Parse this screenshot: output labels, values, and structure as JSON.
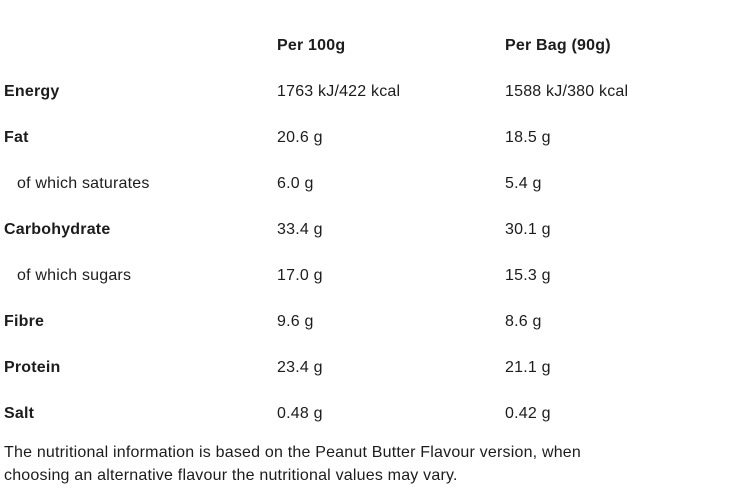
{
  "table": {
    "header": {
      "per100": "Per 100g",
      "perbag": "Per Bag (90g)"
    },
    "rows": [
      {
        "label": "Energy",
        "bold": true,
        "per100": "1763 kJ/422 kcal",
        "perbag": "1588 kJ/380 kcal"
      },
      {
        "label": "Fat",
        "bold": true,
        "per100": "20.6 g",
        "perbag": "18.5 g"
      },
      {
        "label": "of which saturates",
        "bold": false,
        "per100": "6.0 g",
        "perbag": "5.4 g"
      },
      {
        "label": "Carbohydrate",
        "bold": true,
        "per100": "33.4 g",
        "perbag": "30.1 g"
      },
      {
        "label": "of which sugars",
        "bold": false,
        "per100": "17.0 g",
        "perbag": "15.3 g"
      },
      {
        "label": "Fibre",
        "bold": true,
        "per100": "9.6 g",
        "perbag": "8.6 g"
      },
      {
        "label": "Protein",
        "bold": true,
        "per100": "23.4 g",
        "perbag": "21.1 g"
      },
      {
        "label": "Salt",
        "bold": true,
        "per100": "0.48 g",
        "perbag": "0.42 g"
      }
    ]
  },
  "footer": {
    "line1": "The nutritional information is based on the Peanut Butter Flavour version, when",
    "line2": "choosing an alternative flavour the nutritional values may vary.",
    "full_text": "The nutritional information is based on the Peanut Butter Flavour version, when choosing an alternative flavour the nutritional values may vary."
  },
  "colors": {
    "text": "#1c1c1c",
    "background": "#ffffff"
  }
}
